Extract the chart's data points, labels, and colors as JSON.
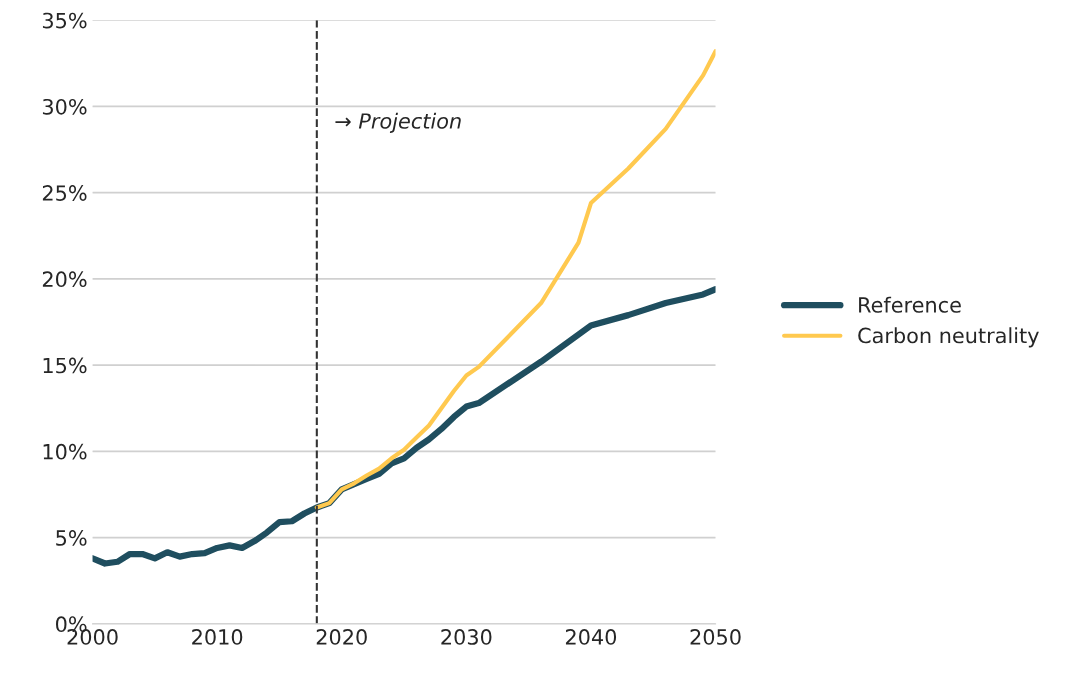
{
  "chart_data": {
    "type": "line",
    "xlim": [
      2000,
      2050
    ],
    "xticks": [
      2000,
      2010,
      2020,
      2030,
      2040,
      2050
    ],
    "ylim": [
      0,
      35
    ],
    "yticks": [
      {
        "value": 0,
        "label": "0%"
      },
      {
        "value": 5,
        "label": "5%"
      },
      {
        "value": 10,
        "label": "10%"
      },
      {
        "value": 15,
        "label": "15%"
      },
      {
        "value": 20,
        "label": "20%"
      },
      {
        "value": 25,
        "label": "25%"
      },
      {
        "value": 30,
        "label": "30%"
      },
      {
        "value": 35,
        "label": "35%"
      }
    ],
    "grid": "y",
    "legend": "right",
    "line_style": "solid",
    "marker": "none",
    "series": [
      {
        "name": "Reference",
        "color": "#1f4e5f",
        "x": [
          2000,
          2001,
          2002,
          2003,
          2004,
          2005,
          2006,
          2007,
          2008,
          2009,
          2010,
          2011,
          2012,
          2013,
          2014,
          2015,
          2016,
          2017,
          2018,
          2019,
          2020,
          2021,
          2022,
          2023,
          2024,
          2025,
          2026,
          2027,
          2028,
          2029,
          2030,
          2031,
          2036,
          2040,
          2043,
          2046,
          2049,
          2050
        ],
        "values": [
          3.8,
          3.5,
          3.6,
          4.05,
          4.05,
          3.8,
          4.15,
          3.9,
          4.05,
          4.1,
          4.4,
          4.55,
          4.4,
          4.8,
          5.3,
          5.9,
          5.95,
          6.4,
          6.75,
          7.0,
          7.8,
          8.1,
          8.4,
          8.7,
          9.3,
          9.6,
          10.2,
          10.7,
          11.3,
          12.0,
          12.6,
          12.8,
          15.2,
          17.3,
          17.9,
          18.6,
          19.1,
          19.4
        ]
      },
      {
        "name": "Carbon neutrality",
        "color": "#ffc94f",
        "x": [
          2018,
          2019,
          2020,
          2021,
          2022,
          2023,
          2024,
          2025,
          2026,
          2027,
          2028,
          2029,
          2030,
          2031,
          2036,
          2039,
          2040,
          2043,
          2046,
          2049,
          2050
        ],
        "values": [
          6.75,
          7.0,
          7.8,
          8.15,
          8.6,
          9.0,
          9.6,
          10.1,
          10.8,
          11.5,
          12.5,
          13.5,
          14.4,
          14.9,
          18.6,
          22.1,
          24.4,
          26.4,
          28.7,
          31.8,
          33.2
        ]
      }
    ],
    "ref_lines": [
      {
        "axis": "x",
        "value": 2018,
        "label": "→ Projection",
        "color": "#333333",
        "line_style": "dashed"
      }
    ]
  }
}
